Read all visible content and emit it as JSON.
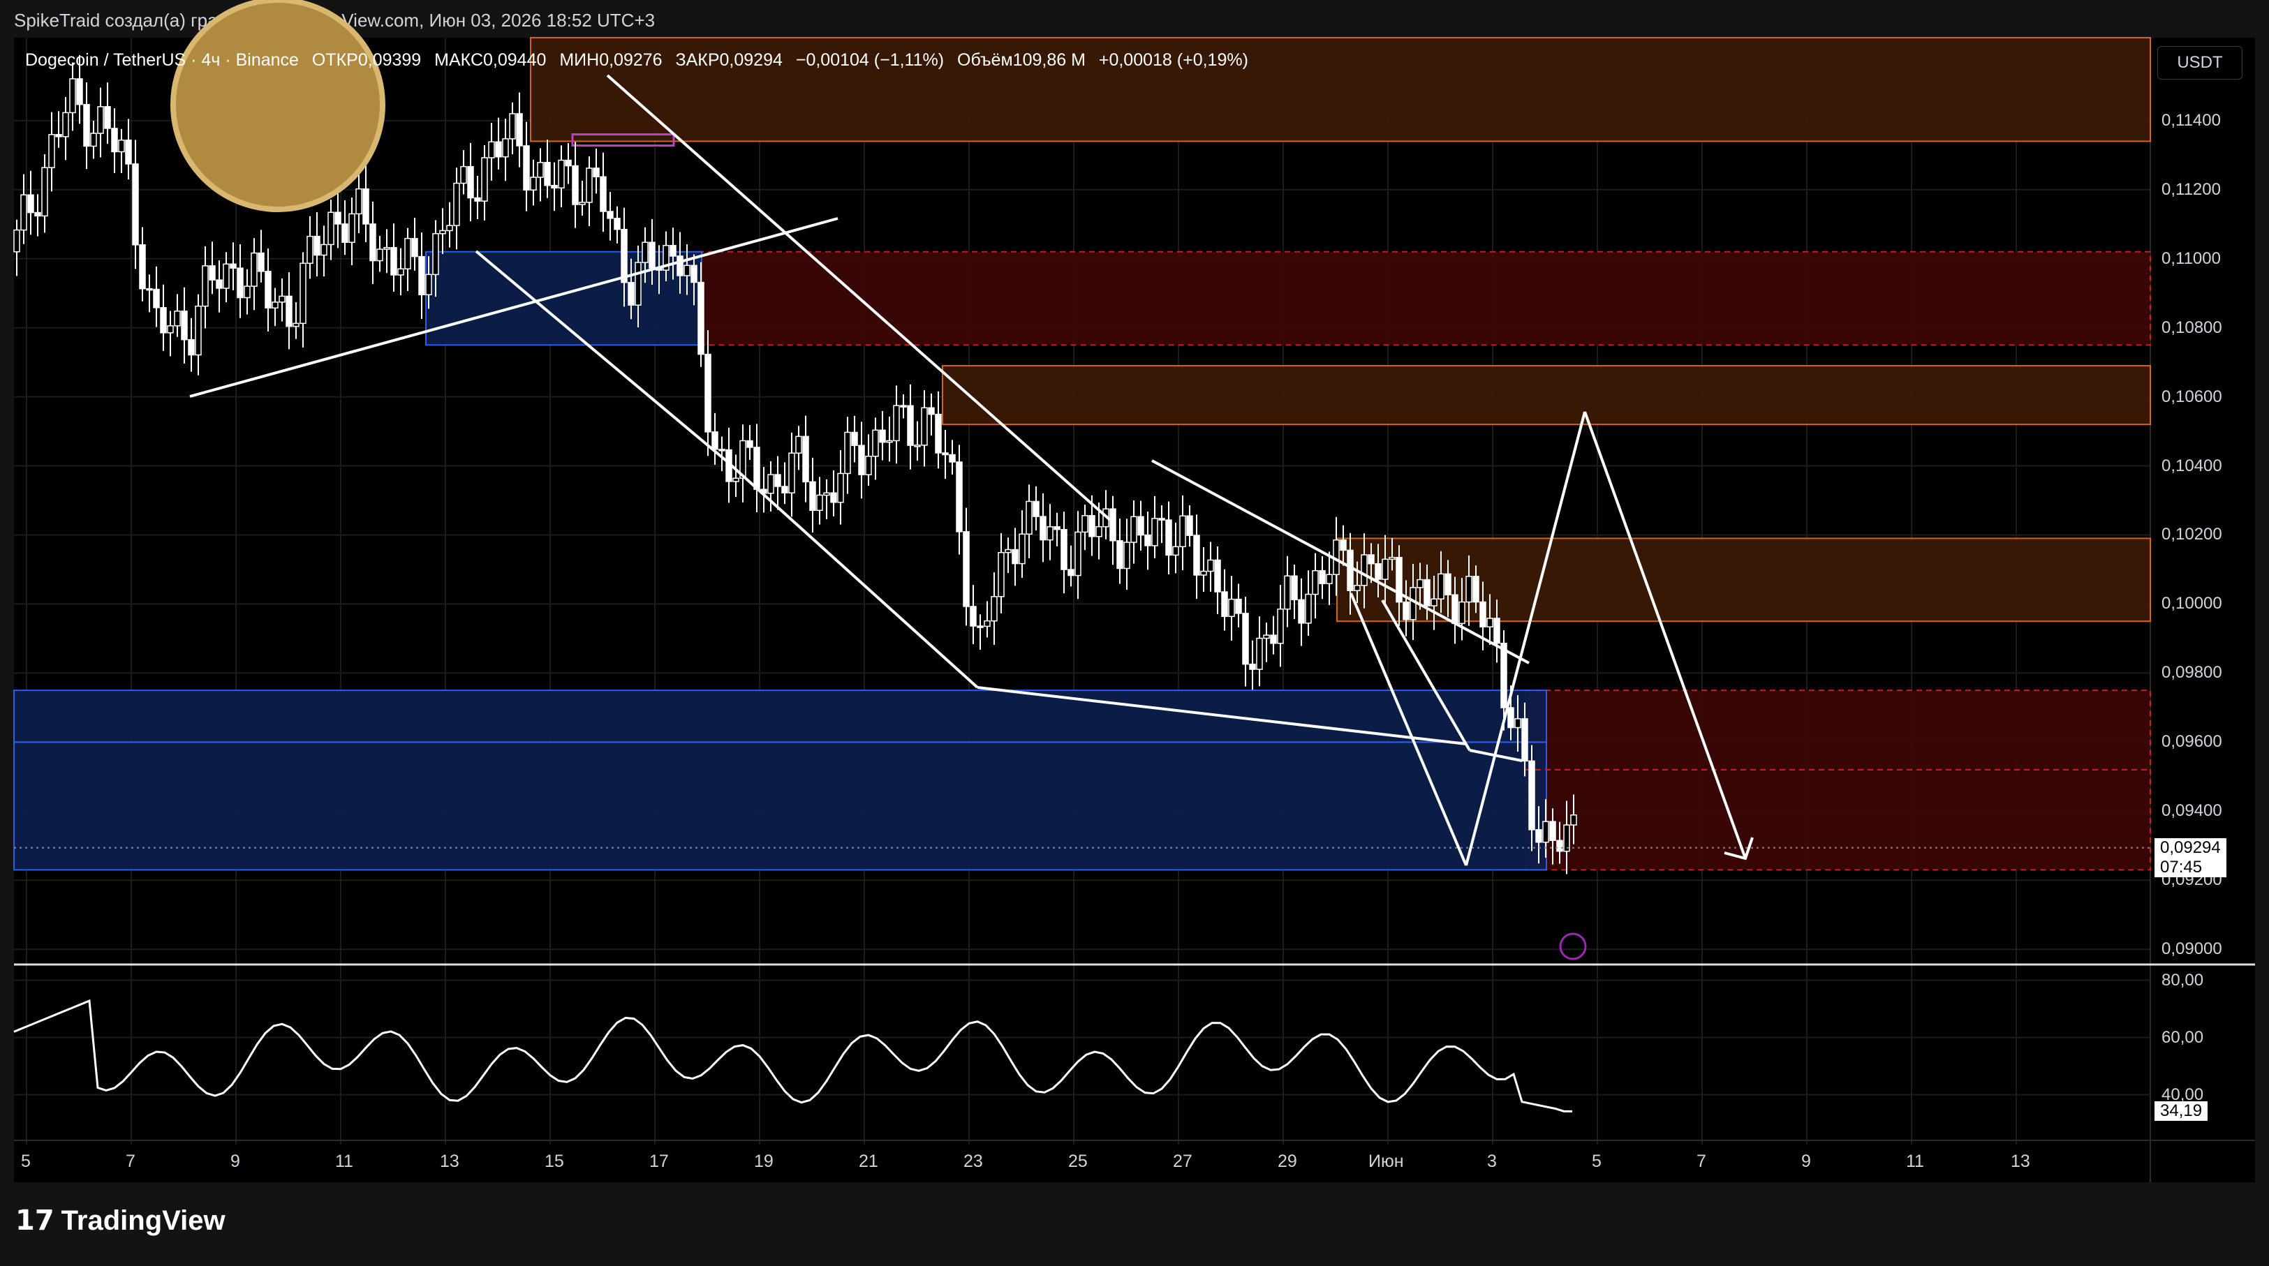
{
  "header": {
    "author_line": "SpikeTraid создал(а) график на TradingView.com, Июн 03, 2026 18:52 UTC+3"
  },
  "legend": {
    "symbol": "Dogecoin / TetherUS · 4ч · Binance",
    "open": "ОТКР0,09399",
    "high": "МАКС0,09440",
    "low": "МИН0,09276",
    "close": "ЗАКР0,09294",
    "change": "−0,00104 (−1,11%)",
    "volume": "Объём109,86 M",
    "vol_change": "+0,00018 (+0,19%)"
  },
  "currency_button": "USDT",
  "price_axis": [
    "0,11400",
    "0,11200",
    "0,11000",
    "0,10800",
    "0,10600",
    "0,10400",
    "0,10200",
    "0,10000",
    "0,09800",
    "0,09600",
    "0,09400",
    "0,09200",
    "0,09000"
  ],
  "last_price": {
    "value": "0,09294",
    "countdown": "07:45"
  },
  "rsi_axis": [
    "80,00",
    "60,00",
    "40,00"
  ],
  "rsi_value": "34,19",
  "time_axis": [
    "5",
    "7",
    "9",
    "11",
    "13",
    "15",
    "17",
    "19",
    "21",
    "23",
    "25",
    "27",
    "29",
    "Июн",
    "3",
    "5",
    "7",
    "9",
    "11",
    "13"
  ],
  "footer": {
    "brand": "TradingView",
    "logo": "tradingview-logo-icon"
  },
  "colors": {
    "background": "#000000",
    "candle": "#ffffff",
    "zone_red": "#3d0707",
    "zone_orange": "#3a1a06",
    "zone_blue": "#0c1e4a",
    "line_orange": "#e06a1a",
    "line_blue": "#2962ff"
  },
  "chart_data": {
    "type": "line",
    "title": "",
    "price_range": [
      0.0896,
      0.1164
    ],
    "rsi_range": [
      25,
      85
    ],
    "last_close": 0.09294,
    "rsi_last": 34.19,
    "price_zones": [
      {
        "kind": "resistance",
        "low": 0.1134,
        "high": 0.1164,
        "color": "#3a1a06"
      },
      {
        "kind": "resistance",
        "low": 0.1075,
        "high": 0.1102,
        "color": "#3d0707"
      },
      {
        "kind": "resistance",
        "low": 0.1052,
        "high": 0.1069,
        "color": "#3a1a06"
      },
      {
        "kind": "resistance",
        "low": 0.0995,
        "high": 0.1019,
        "color": "#3a1a06"
      },
      {
        "kind": "resistance",
        "low": 0.0923,
        "high": 0.0975,
        "color": "#3d0707"
      },
      {
        "kind": "support",
        "low": 0.1075,
        "high": 0.1102,
        "color": "#0c1e4a"
      },
      {
        "kind": "support",
        "low": 0.0923,
        "high": 0.0975,
        "color": "#0c1e4a"
      }
    ]
  }
}
